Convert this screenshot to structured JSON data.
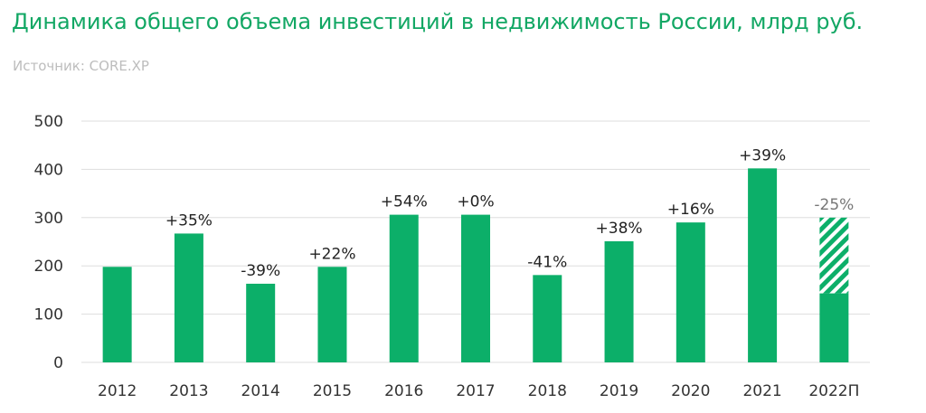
{
  "title": "Динамика общего объема инвестиций в недвижимость России, млрд руб.",
  "source": "Источник: CORE.XP",
  "colors": {
    "bar": "#0caf69",
    "title": "#12a764",
    "grid": "#dddddd"
  },
  "chart_data": {
    "type": "bar",
    "categories": [
      "2012",
      "2013",
      "2014",
      "2015",
      "2016",
      "2017",
      "2018",
      "2019",
      "2020",
      "2021",
      "2022П"
    ],
    "values": [
      198,
      267,
      163,
      198,
      306,
      306,
      181,
      251,
      290,
      402,
      300
    ],
    "forecast_solid_value": 143,
    "forecast_index": 10,
    "labels": [
      "",
      "+35%",
      "-39%",
      "+22%",
      "+54%",
      "+0%",
      "-41%",
      "+38%",
      "+16%",
      "+39%",
      "-25%"
    ],
    "yticks": [
      "0",
      "100",
      "200",
      "300",
      "400",
      "500"
    ],
    "ylim": [
      0,
      500
    ],
    "grid": true
  }
}
